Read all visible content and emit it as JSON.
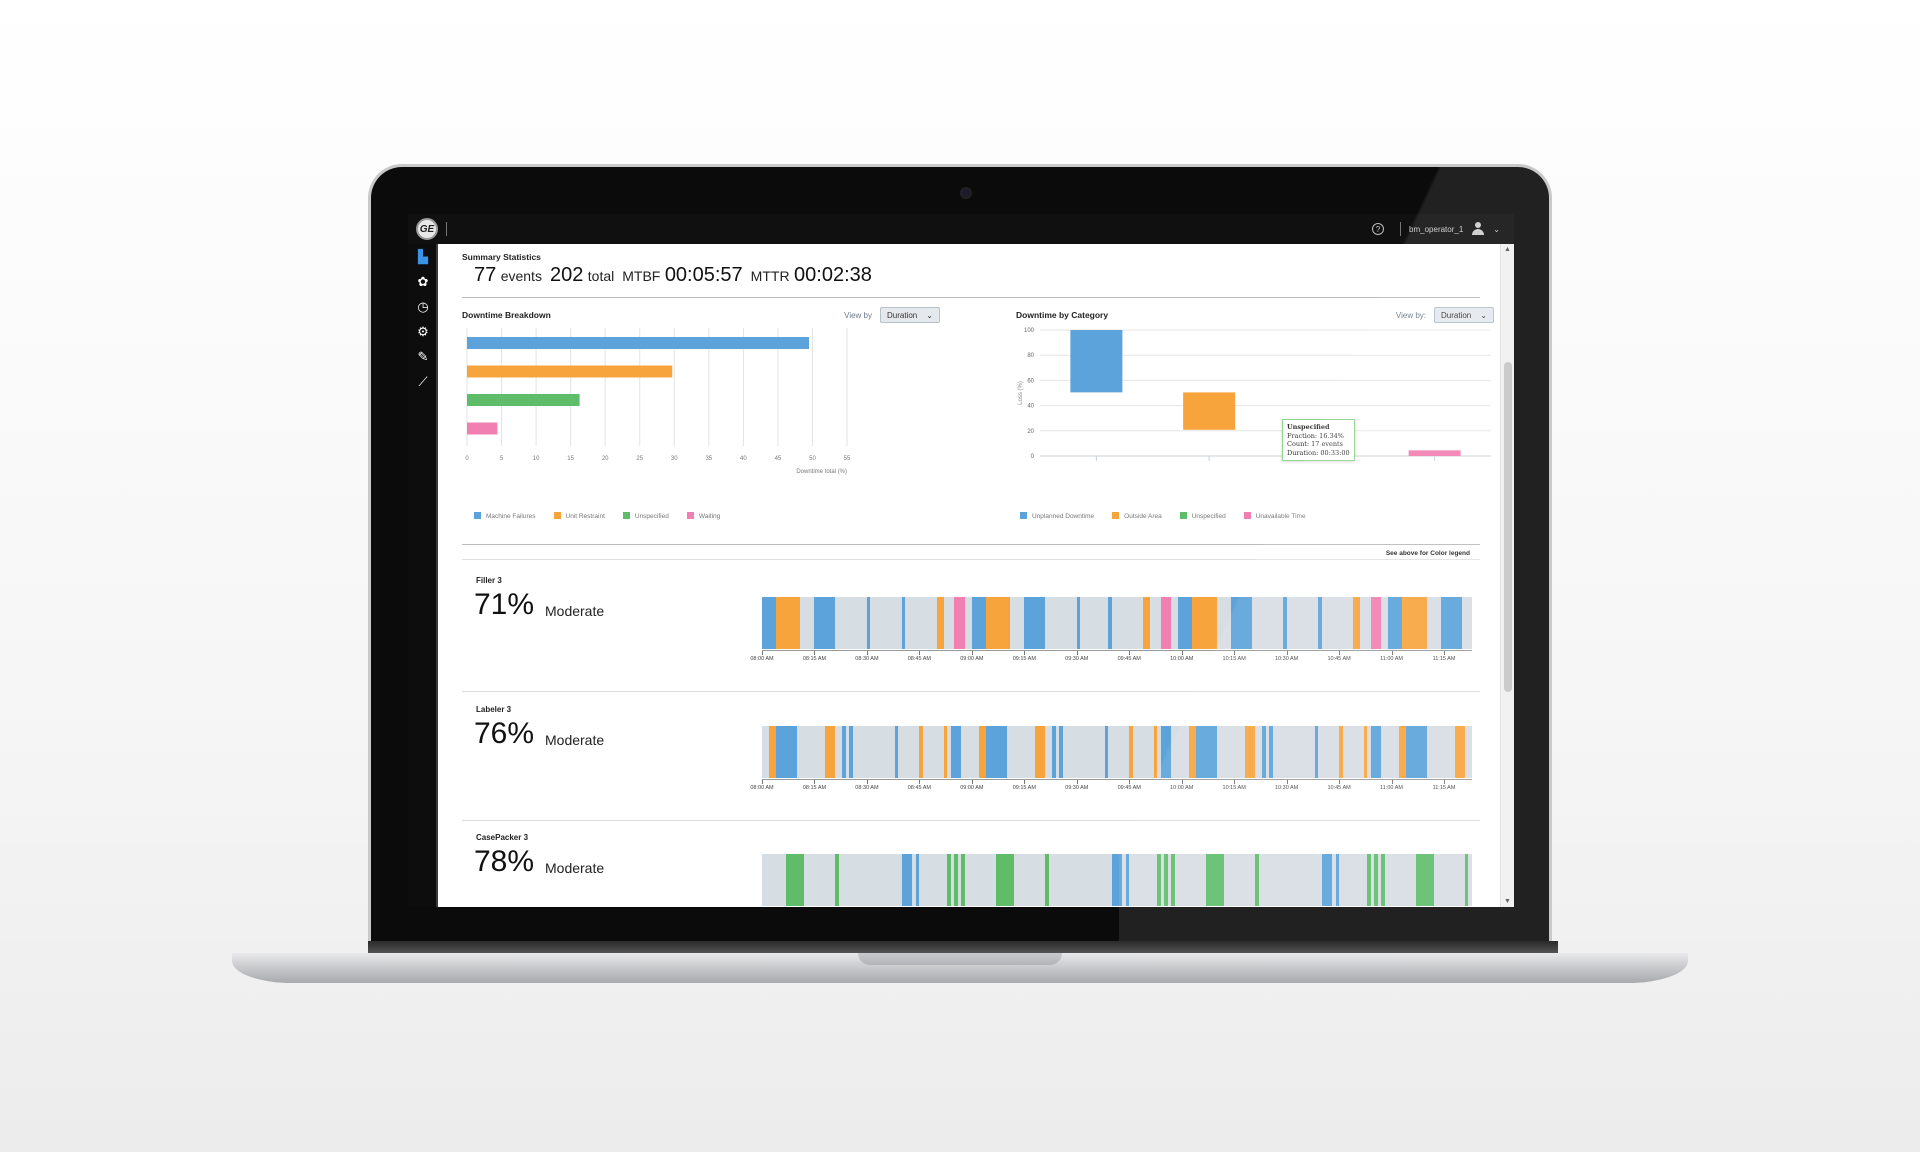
{
  "topbar": {
    "logo": "GE",
    "help_icon": "?",
    "username": "bm_operator_1",
    "chevron": "⌄"
  },
  "sidebar": {
    "items": [
      {
        "name": "factory",
        "icon": "▙",
        "active": true
      },
      {
        "name": "network",
        "icon": "✿"
      },
      {
        "name": "clock",
        "icon": "◷"
      },
      {
        "name": "settings",
        "icon": "⚙"
      },
      {
        "name": "edit",
        "icon": "✎"
      },
      {
        "name": "trends",
        "icon": "⟋"
      }
    ]
  },
  "summary": {
    "title": "Summary Statistics",
    "events_value": "77",
    "events_label": "events",
    "total_value": "202",
    "total_label": "total",
    "mtbf_label": "MTBF",
    "mtbf_value": "00:05:57",
    "mttr_label": "MTTR",
    "mttr_value": "00:02:38"
  },
  "breakdown": {
    "title": "Downtime Breakdown",
    "viewby_label": "View by",
    "select_value": "Duration"
  },
  "category": {
    "title": "Downtime by Category",
    "viewby_label": "View by:",
    "select_value": "Duration",
    "tooltip": {
      "title": "Unspecified",
      "fraction": "Fraction: 16.34%",
      "count": "Count: 17 events",
      "duration": "Duration: 00:33:00"
    }
  },
  "colors": {
    "blue": "#5ba3da",
    "orange": "#f8a43c",
    "green": "#5fbd6a",
    "pink": "#f27fb1",
    "track": "#d6dde3"
  },
  "chart_data": [
    {
      "type": "bar",
      "orientation": "horizontal",
      "title": "Downtime Breakdown",
      "categories": [
        "Machine Failures",
        "Unit Restraint",
        "Unspecified",
        "Waiting"
      ],
      "values": [
        49.5,
        29.7,
        16.3,
        4.4
      ],
      "colors": [
        "#5ba3da",
        "#f8a43c",
        "#5fbd6a",
        "#f27fb1"
      ],
      "xlabel": "Downtime total (%)",
      "xticks": [
        0,
        5,
        10,
        15,
        20,
        25,
        30,
        35,
        40,
        45,
        50,
        55
      ],
      "xlim": [
        0,
        55
      ],
      "grid": true,
      "legend_position": "bottom"
    },
    {
      "type": "bar",
      "subtype": "waterfall",
      "title": "Downtime by Category",
      "categories": [
        "Unplanned Downtime",
        "Outside Area",
        "Unspecified",
        "Unavailable Time"
      ],
      "ranges": [
        [
          50.5,
          100
        ],
        [
          20.8,
          50.5
        ],
        [
          4.5,
          20.8
        ],
        [
          0,
          4.5
        ]
      ],
      "values": [
        49.5,
        29.7,
        16.3,
        4.5
      ],
      "colors": [
        "#5ba3da",
        "#f8a43c",
        "#5fbd6a",
        "#f27fb1"
      ],
      "ylabel": "Loss (%)",
      "yticks": [
        0,
        20,
        40,
        60,
        80,
        100
      ],
      "ylim": [
        0,
        100
      ],
      "grid": true,
      "legend_position": "bottom"
    }
  ],
  "legend_note": "See above for Color legend",
  "timeline_ticks": [
    "08:00 AM",
    "08:15 AM",
    "08:30 AM",
    "08:45 AM",
    "09:00 AM",
    "09:15 AM",
    "09:30 AM",
    "09:45 AM",
    "10:00 AM",
    "10:15 AM",
    "10:30 AM",
    "10:45 AM",
    "11:00 AM",
    "11:15 AM"
  ],
  "stations": [
    {
      "name": "Filler 3",
      "percent": "71%",
      "level": "Moderate",
      "segments": [
        [
          0,
          4,
          "blue"
        ],
        [
          4,
          11,
          "orange"
        ],
        [
          15,
          21,
          "blue"
        ],
        [
          30,
          31,
          "blue"
        ],
        [
          40,
          41,
          "blue"
        ],
        [
          50,
          52,
          "orange"
        ],
        [
          55,
          58,
          "pink"
        ],
        [
          60,
          64,
          "blue"
        ],
        [
          64,
          71,
          "orange"
        ],
        [
          75,
          81,
          "blue"
        ],
        [
          90,
          91,
          "blue"
        ],
        [
          99,
          100,
          "blue"
        ],
        [
          109,
          111,
          "orange"
        ],
        [
          114,
          117,
          "pink"
        ],
        [
          119,
          123,
          "blue"
        ],
        [
          123,
          130,
          "orange"
        ],
        [
          134,
          140,
          "blue"
        ],
        [
          149,
          150,
          "blue"
        ],
        [
          159,
          160,
          "blue"
        ],
        [
          169,
          171,
          "orange"
        ],
        [
          174,
          177,
          "pink"
        ],
        [
          179,
          183,
          "blue"
        ],
        [
          183,
          190,
          "orange"
        ],
        [
          194,
          200,
          "blue"
        ]
      ]
    },
    {
      "name": "Labeler 3",
      "percent": "76%",
      "level": "Moderate",
      "segments": [
        [
          2,
          4,
          "orange"
        ],
        [
          4,
          10,
          "blue"
        ],
        [
          18,
          21,
          "orange"
        ],
        [
          23,
          24,
          "blue"
        ],
        [
          25,
          26,
          "blue"
        ],
        [
          38,
          39,
          "blue"
        ],
        [
          45,
          46,
          "orange"
        ],
        [
          52,
          53,
          "orange"
        ],
        [
          54,
          57,
          "blue"
        ],
        [
          62,
          64,
          "orange"
        ],
        [
          64,
          70,
          "blue"
        ],
        [
          78,
          81,
          "orange"
        ],
        [
          83,
          84,
          "blue"
        ],
        [
          85,
          86,
          "blue"
        ],
        [
          98,
          99,
          "blue"
        ],
        [
          105,
          106,
          "orange"
        ],
        [
          112,
          113,
          "orange"
        ],
        [
          114,
          117,
          "blue"
        ],
        [
          122,
          124,
          "orange"
        ],
        [
          124,
          130,
          "blue"
        ],
        [
          138,
          141,
          "orange"
        ],
        [
          143,
          144,
          "blue"
        ],
        [
          145,
          146,
          "blue"
        ],
        [
          158,
          159,
          "blue"
        ],
        [
          165,
          166,
          "orange"
        ],
        [
          172,
          173,
          "orange"
        ],
        [
          174,
          177,
          "blue"
        ],
        [
          182,
          184,
          "orange"
        ],
        [
          184,
          190,
          "blue"
        ],
        [
          198,
          201,
          "orange"
        ]
      ]
    },
    {
      "name": "CasePacker 3",
      "percent": "78%",
      "level": "Moderate",
      "segments": [
        [
          7,
          12,
          "green"
        ],
        [
          21,
          22,
          "green"
        ],
        [
          40,
          43,
          "blue"
        ],
        [
          44,
          45,
          "blue"
        ],
        [
          53,
          54,
          "green"
        ],
        [
          55,
          56,
          "green"
        ],
        [
          57,
          58,
          "green"
        ],
        [
          67,
          72,
          "green"
        ],
        [
          81,
          82,
          "green"
        ],
        [
          100,
          103,
          "blue"
        ],
        [
          104,
          105,
          "blue"
        ],
        [
          113,
          114,
          "green"
        ],
        [
          115,
          116,
          "green"
        ],
        [
          117,
          118,
          "green"
        ],
        [
          127,
          132,
          "green"
        ],
        [
          141,
          142,
          "green"
        ],
        [
          160,
          163,
          "blue"
        ],
        [
          164,
          165,
          "blue"
        ],
        [
          173,
          174,
          "green"
        ],
        [
          175,
          176,
          "green"
        ],
        [
          177,
          178,
          "green"
        ],
        [
          187,
          192,
          "green"
        ],
        [
          201,
          202,
          "green"
        ]
      ]
    }
  ]
}
